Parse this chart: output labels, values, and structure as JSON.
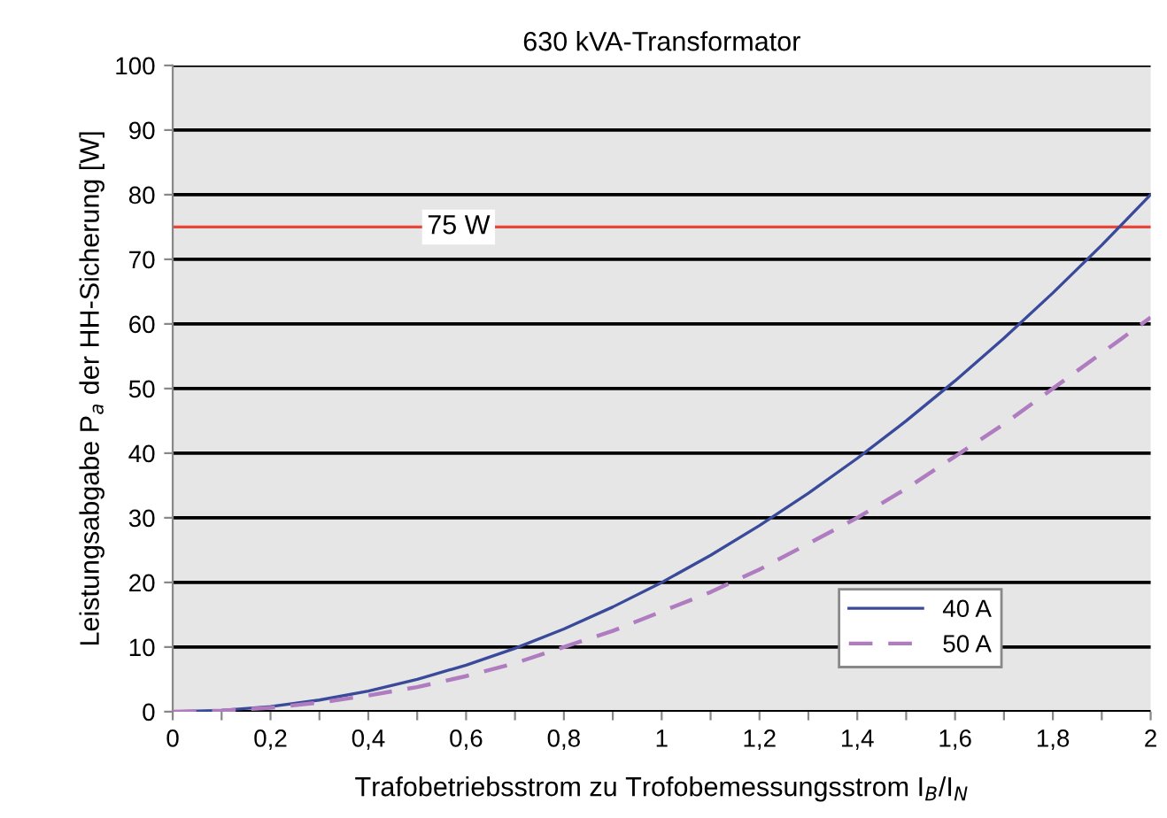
{
  "chart_data": {
    "type": "line",
    "title": "630 kVA-Transformator",
    "xlabel": "Trafobetriebsstrom zu Trofobemessungsstrom I$_{B}$/I$_{N}$",
    "ylabel": "Leistungsabgabe P$_{a}$ der HH-Sicherung [W]",
    "x": [
      0,
      0.1,
      0.2,
      0.3,
      0.4,
      0.5,
      0.6,
      0.7,
      0.8,
      0.9,
      1,
      1.1,
      1.2,
      1.3,
      1.4,
      1.5,
      1.6,
      1.7,
      1.8,
      1.9,
      2
    ],
    "series": [
      {
        "name": "40 A",
        "color": "#3a4a9a",
        "line_style": "solid",
        "values": [
          0,
          0.2,
          0.8,
          1.8,
          3.2,
          5,
          7.2,
          9.8,
          12.8,
          16.2,
          20,
          24.2,
          28.8,
          33.8,
          39.2,
          45,
          51.2,
          57.8,
          64.8,
          72.2,
          80
        ]
      },
      {
        "name": "50 A",
        "color": "#b07cc0",
        "line_style": "dashed",
        "values": [
          0,
          0.15,
          0.6,
          1.4,
          2.5,
          3.8,
          5.5,
          7.5,
          10,
          12.5,
          15.5,
          18.5,
          22,
          26,
          30,
          34.5,
          39.5,
          44.5,
          50,
          55.5,
          61
        ]
      }
    ],
    "xlim": [
      0,
      2
    ],
    "xticks": [
      0,
      {
        "value": 0.1,
        "label": null
      },
      {
        "value": 0.2,
        "label": "0,2"
      },
      {
        "value": 0.3,
        "label": null
      },
      {
        "value": 0.4,
        "label": "0,4"
      },
      {
        "value": 0.5,
        "label": null
      },
      {
        "value": 0.6,
        "label": "0,6"
      },
      {
        "value": 0.7,
        "label": null
      },
      {
        "value": 0.8,
        "label": "0,8"
      },
      {
        "value": 0.9,
        "label": null
      },
      1,
      {
        "value": 1.1,
        "label": null
      },
      {
        "value": 1.2,
        "label": "1,2"
      },
      {
        "value": 1.3,
        "label": null
      },
      {
        "value": 1.4,
        "label": "1,4"
      },
      {
        "value": 1.5,
        "label": null
      },
      {
        "value": 1.6,
        "label": "1,6"
      },
      {
        "value": 1.7,
        "label": null
      },
      {
        "value": 1.8,
        "label": "1,8"
      },
      {
        "value": 1.9,
        "label": null
      },
      2
    ],
    "ylim": [
      0,
      100
    ],
    "yticks": [
      0,
      10,
      20,
      30,
      40,
      50,
      60,
      70,
      80,
      90,
      100
    ],
    "ref_lines": [
      {
        "axis": "y",
        "value": 75,
        "label": "75 W",
        "color": "#e8463a"
      }
    ],
    "grid": "y",
    "legend": "bottom right",
    "marker": "none"
  }
}
